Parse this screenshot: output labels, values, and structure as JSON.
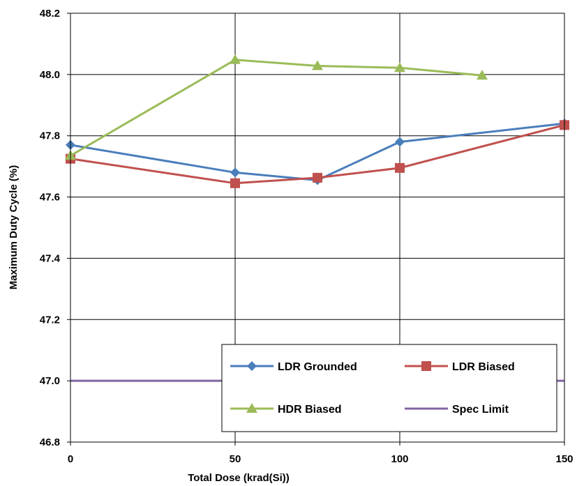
{
  "chart_data": {
    "type": "line",
    "title": "",
    "xlabel": "Total Dose (krad(Si))",
    "ylabel": "Maximum Duty Cycle (%)",
    "xlim": [
      0,
      150
    ],
    "ylim": [
      46.8,
      48.2
    ],
    "xticks": [
      0,
      50,
      100,
      150
    ],
    "yticks": [
      46.8,
      47.0,
      47.2,
      47.4,
      47.6,
      47.8,
      48.0,
      48.2
    ],
    "xtick_labels": [
      "0",
      "50",
      "100",
      "150"
    ],
    "ytick_labels": [
      "46.8",
      "47.0",
      "47.2",
      "47.4",
      "47.6",
      "47.8",
      "48.0",
      "48.2"
    ],
    "grid": true,
    "legend_position": "bottom-right",
    "series": [
      {
        "name": "LDR Grounded",
        "color": "#4a7ebb",
        "marker": "diamond",
        "x": [
          0,
          50,
          75,
          100,
          150
        ],
        "y": [
          47.77,
          47.68,
          47.655,
          47.78,
          47.84
        ]
      },
      {
        "name": "LDR Biased",
        "color": "#c0504d",
        "marker": "square",
        "x": [
          0,
          50,
          75,
          100,
          150
        ],
        "y": [
          47.725,
          47.645,
          47.663,
          47.695,
          47.835
        ]
      },
      {
        "name": "HDR Biased",
        "color": "#9bbb59",
        "marker": "triangle",
        "x": [
          0,
          50,
          75,
          100,
          125
        ],
        "y": [
          47.735,
          48.048,
          48.028,
          48.022,
          47.997
        ]
      },
      {
        "name": "Spec Limit",
        "color": "#8064a2",
        "marker": "none",
        "x": [
          0,
          150
        ],
        "y": [
          47.0,
          47.0
        ]
      }
    ]
  }
}
